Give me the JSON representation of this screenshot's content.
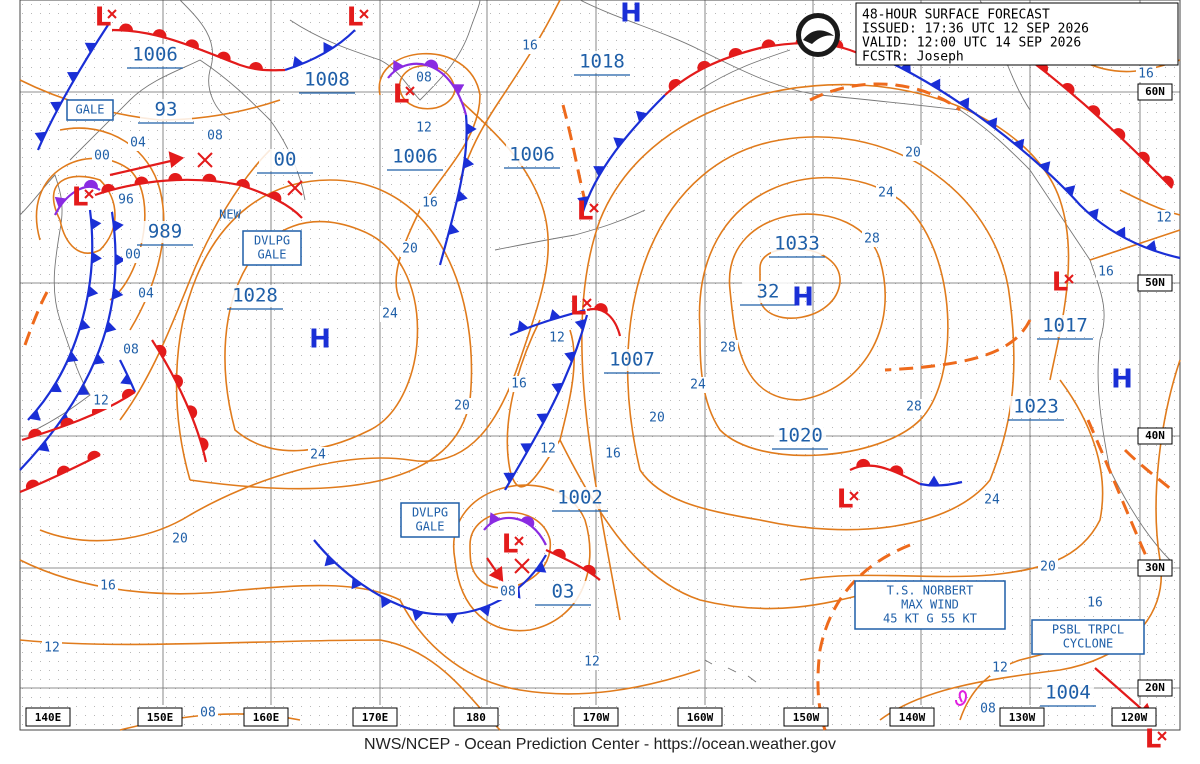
{
  "header": {
    "lines": [
      "48-HOUR SURFACE FORECAST",
      "ISSUED: 17:36 UTC 12 SEP 2026",
      "VALID: 12:00 UTC 14 SEP 2026",
      "FCSTR: Joseph"
    ]
  },
  "footer": "NWS/NCEP - Ocean Prediction Center - https://ocean.weather.gov",
  "longitudes": [
    "140E",
    "150E",
    "160E",
    "170E",
    "180",
    "170W",
    "160W",
    "150W",
    "140W",
    "130W",
    "120W"
  ],
  "latitudes": [
    "60N",
    "50N",
    "40N",
    "30N",
    "20N"
  ],
  "centers": [
    "1006",
    "93",
    "1008",
    "00",
    "989",
    "1028",
    "1006",
    "1018",
    "1006",
    "1007",
    "1033",
    "32",
    "1002",
    "03",
    "1017",
    "1023",
    "1020",
    "1004"
  ],
  "isobar_labels": [
    "16",
    "04",
    "00",
    "08",
    "96",
    "00",
    "04",
    "08",
    "12",
    "08",
    "12",
    "16",
    "20",
    "24",
    "20",
    "24",
    "20",
    "16",
    "12",
    "08",
    "16",
    "12",
    "12",
    "16",
    "20",
    "24",
    "28",
    "28",
    "24",
    "20",
    "28",
    "24",
    "16",
    "12",
    "16",
    "20",
    "16",
    "12",
    "12",
    "08",
    "08"
  ],
  "highs": [
    "H",
    "H",
    "H",
    "H"
  ],
  "lows": [
    "L",
    "L",
    "L",
    "L",
    "L",
    "L",
    "L",
    "L",
    "L",
    "L"
  ],
  "boxes": [
    {
      "lines": [
        "GALE"
      ]
    },
    {
      "lines": [
        "DVLPG",
        "GALE"
      ]
    },
    {
      "lines": [
        "DVLPG",
        "GALE"
      ]
    },
    {
      "lines": [
        "T.S. NORBERT",
        "MAX WIND",
        "45 KT G 55 KT"
      ]
    },
    {
      "lines": [
        "PSBL TRPCL",
        "CYCLONE"
      ]
    }
  ],
  "notes": [
    "NEW"
  ]
}
